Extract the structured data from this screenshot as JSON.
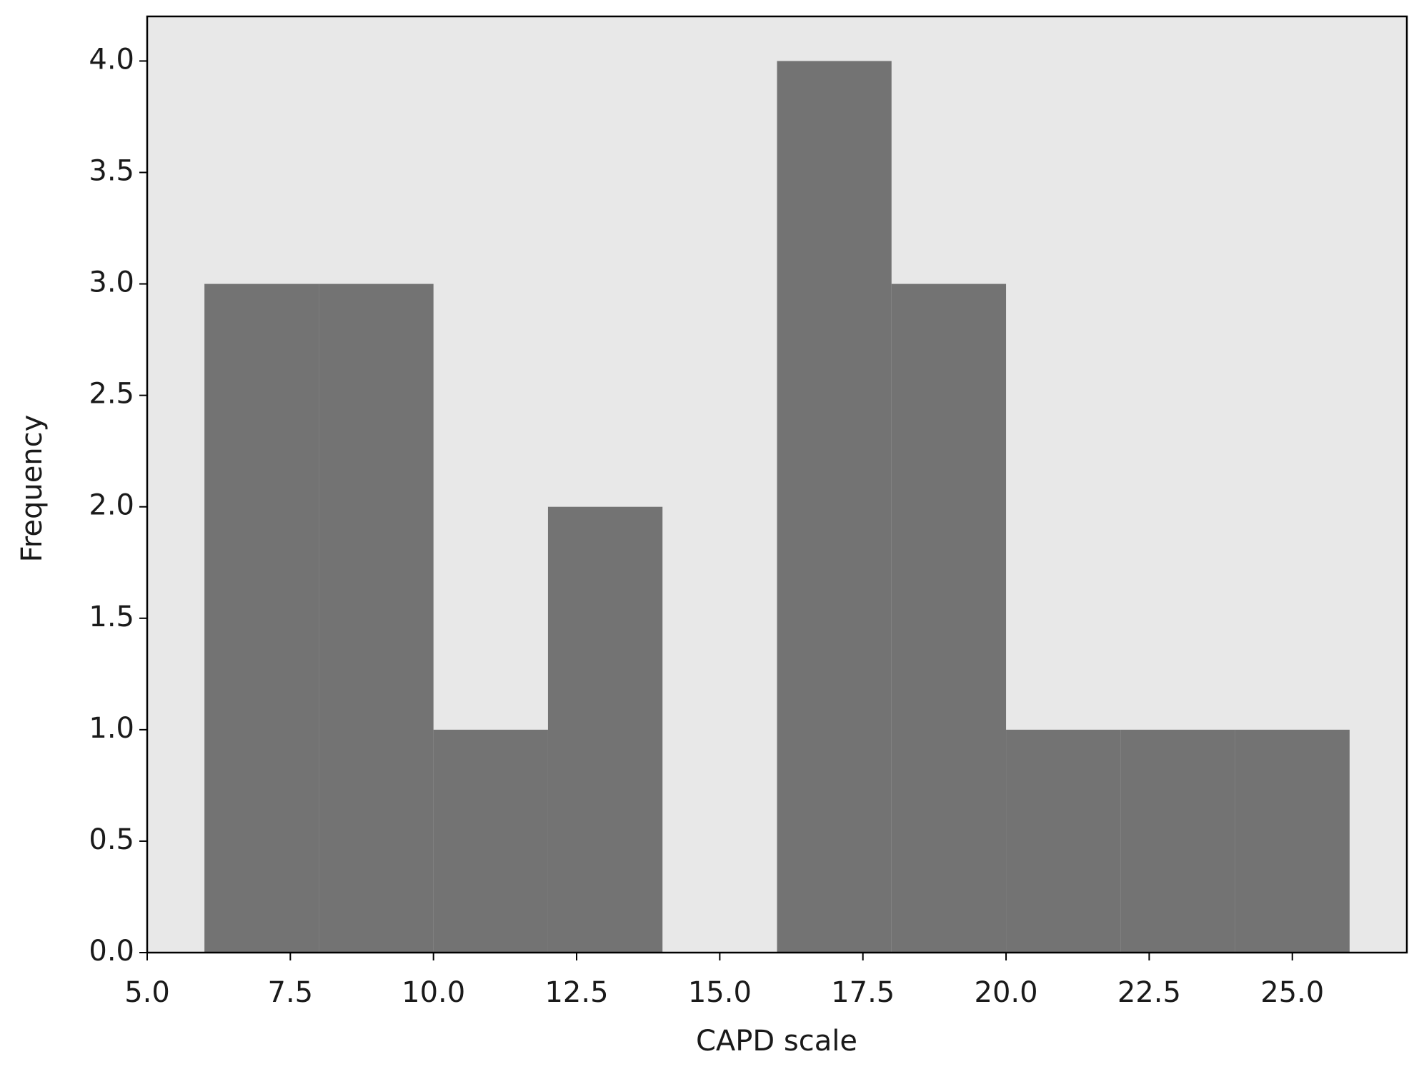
{
  "chart_data": {
    "type": "histogram",
    "x_label": "CAPD scale",
    "y_label": "Frequency",
    "bins": [
      6,
      8,
      10,
      12,
      14,
      16,
      18,
      20,
      22,
      24,
      26
    ],
    "values": [
      3,
      3,
      1,
      2,
      0,
      4,
      3,
      1,
      1,
      1
    ],
    "color": "#737373",
    "background": "#e8e8e8",
    "xlim": [
      5,
      27
    ],
    "ylim": [
      0,
      4.2
    ],
    "xticks": [
      {
        "value": 5,
        "label": "5.0"
      },
      {
        "value": 7.5,
        "label": "7.5"
      },
      {
        "value": 10,
        "label": "10.0"
      },
      {
        "value": 12.5,
        "label": "12.5"
      },
      {
        "value": 15,
        "label": "15.0"
      },
      {
        "value": 17.5,
        "label": "17.5"
      },
      {
        "value": 20,
        "label": "20.0"
      },
      {
        "value": 22.5,
        "label": "22.5"
      },
      {
        "value": 25,
        "label": "25.0"
      }
    ],
    "yticks": [
      {
        "value": 0,
        "label": "0.0"
      },
      0.5,
      {
        "value": 1,
        "label": "1.0"
      },
      1.5,
      {
        "value": 2,
        "label": "2.0"
      },
      2.5,
      {
        "value": 3,
        "label": "3.0"
      },
      3.5,
      {
        "value": 4,
        "label": "4.0"
      }
    ],
    "grid": false
  }
}
